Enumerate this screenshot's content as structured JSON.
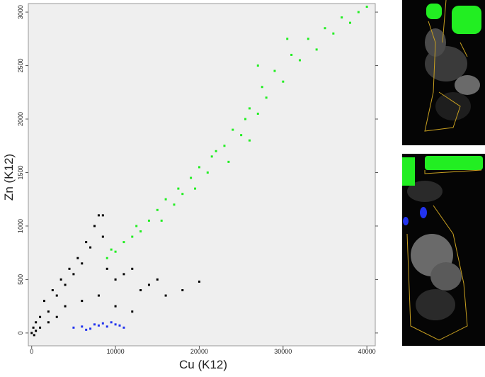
{
  "chart_data": {
    "type": "scatter",
    "xlabel": "Cu (K12)",
    "ylabel": "Zn (K12)",
    "xlim": [
      -400,
      41000
    ],
    "ylim": [
      -120,
      3080
    ],
    "xticks": [
      0,
      10000,
      20000,
      30000,
      40000
    ],
    "yticks": [
      0,
      500,
      1000,
      1500,
      2000,
      2500,
      3000
    ],
    "series": [
      {
        "color": "#000000",
        "x": [
          0,
          200,
          500,
          1000,
          1500,
          2000,
          2500,
          3000,
          3500,
          4000,
          4500,
          5000,
          5500,
          6000,
          6500,
          7000,
          7500,
          8000,
          8500,
          9000,
          10000,
          11000,
          12000,
          13000,
          14000,
          15000,
          16000,
          18000,
          20000,
          2000,
          3000,
          4000,
          6000,
          8000,
          10000,
          12000,
          1000,
          500,
          300,
          8500
        ],
        "values": [
          0,
          50,
          100,
          150,
          300,
          200,
          400,
          350,
          500,
          450,
          600,
          550,
          700,
          650,
          850,
          800,
          1000,
          1100,
          900,
          600,
          500,
          550,
          600,
          400,
          450,
          500,
          350,
          400,
          480,
          100,
          150,
          250,
          300,
          350,
          250,
          200,
          50,
          20,
          -20,
          1100
        ]
      },
      {
        "color": "#22ee22",
        "x": [
          9000,
          9500,
          10000,
          11000,
          12000,
          12500,
          13000,
          14000,
          15000,
          15500,
          16000,
          17000,
          17500,
          18000,
          19000,
          19500,
          20000,
          21000,
          21500,
          22000,
          23000,
          23500,
          24000,
          25000,
          25500,
          26000,
          27000,
          27500,
          28000,
          29000,
          30000,
          31000,
          32000,
          33000,
          34000,
          35000,
          36000,
          37000,
          38000,
          39000,
          40000,
          30500,
          27000,
          26000
        ],
        "values": [
          700,
          780,
          760,
          850,
          900,
          1000,
          950,
          1050,
          1150,
          1050,
          1250,
          1200,
          1350,
          1300,
          1450,
          1350,
          1550,
          1500,
          1650,
          1700,
          1750,
          1600,
          1900,
          1850,
          2000,
          2100,
          2050,
          2300,
          2200,
          2450,
          2350,
          2600,
          2550,
          2750,
          2650,
          2850,
          2800,
          2950,
          2900,
          3000,
          3050,
          2750,
          2500,
          1800
        ]
      },
      {
        "color": "#2233ee",
        "x": [
          5000,
          6000,
          7000,
          7500,
          8000,
          8500,
          9000,
          9500,
          10000,
          10500,
          11000,
          6500
        ],
        "values": [
          50,
          60,
          40,
          80,
          70,
          90,
          60,
          100,
          80,
          70,
          50,
          30
        ]
      }
    ]
  }
}
